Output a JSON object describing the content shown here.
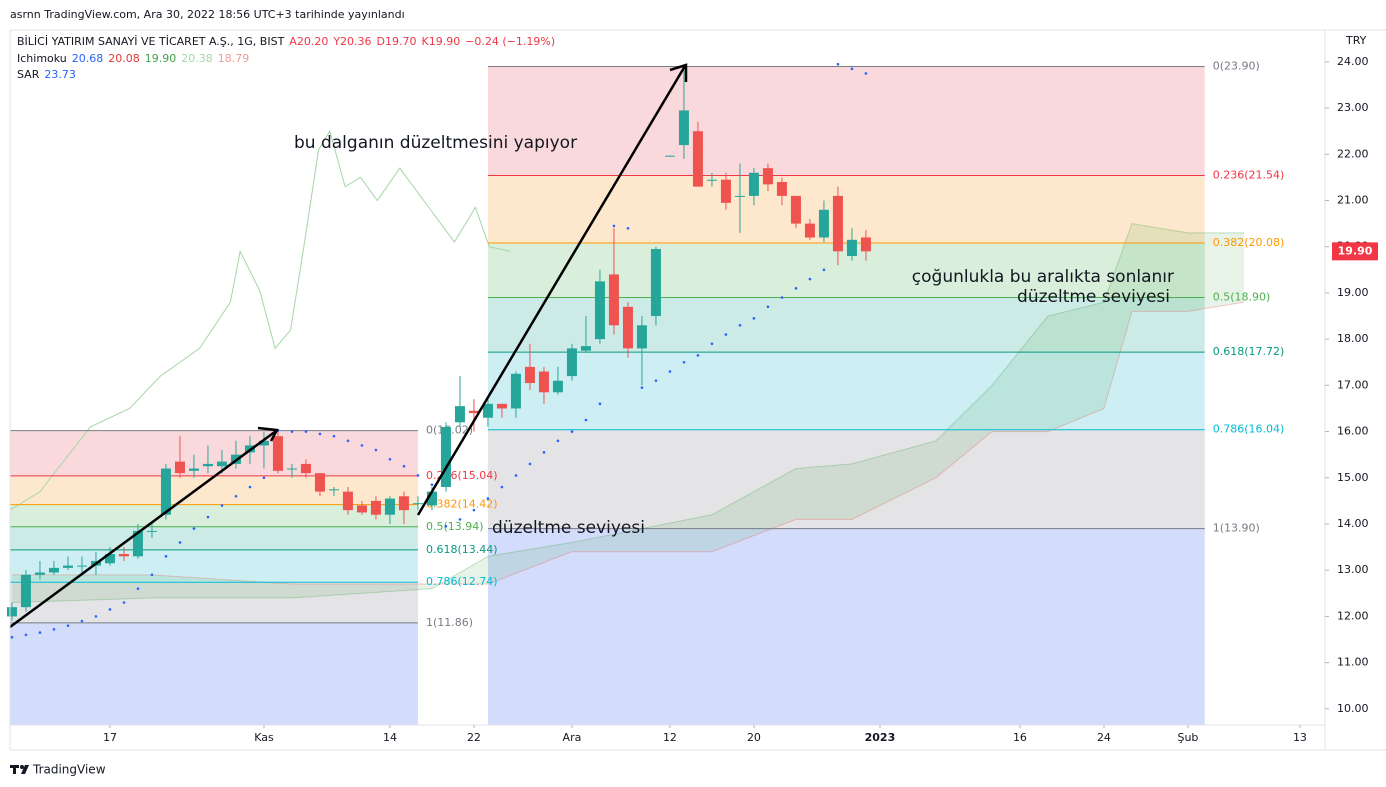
{
  "header": {
    "published": "asrnn TradingView.com, Ara 30, 2022 18:56 UTC+3 tarihinde yayınlandı"
  },
  "legend": {
    "symbol": "BİLİCİ YATIRIM SANAYİ VE TİCARET A.Ş., 1G, BIST",
    "ohlc": [
      {
        "text": "A20.20",
        "color": "#f23645"
      },
      {
        "text": "Y20.36",
        "color": "#f23645"
      },
      {
        "text": "D19.70",
        "color": "#f23645"
      },
      {
        "text": "K19.90",
        "color": "#f23645"
      },
      {
        "text": "−0.24 (−1.19%)",
        "color": "#f23645"
      }
    ],
    "indicators": [
      {
        "name": "Ichimoku",
        "values": [
          {
            "text": "20.68",
            "color": "#2962ff"
          },
          {
            "text": "20.08",
            "color": "#e53935"
          },
          {
            "text": "19.90",
            "color": "#43a047"
          },
          {
            "text": "20.38",
            "color": "#a5d6a7"
          },
          {
            "text": "18.79",
            "color": "#ef9a9a"
          }
        ]
      },
      {
        "name": "SAR",
        "values": [
          {
            "text": "23.73",
            "color": "#2962ff"
          }
        ]
      }
    ]
  },
  "footer": {
    "brand": "TradingView"
  },
  "chart_data": {
    "type": "candlestick",
    "currency": "TRY",
    "xlim": [
      -0.14,
      93.79
    ],
    "ylim": [
      9.65,
      24.69
    ],
    "xticks": [
      {
        "value": 7,
        "label": "17"
      },
      {
        "value": 18,
        "label": "Kas"
      },
      {
        "value": 27,
        "label": "14"
      },
      {
        "value": 33,
        "label": "22"
      },
      {
        "value": 40,
        "label": "Ara"
      },
      {
        "value": 47,
        "label": "12"
      },
      {
        "value": 53,
        "label": "20"
      },
      {
        "value": 62,
        "label": "2023"
      },
      {
        "value": 72,
        "label": "16"
      },
      {
        "value": 78,
        "label": "24"
      },
      {
        "value": 84,
        "label": "Şub"
      },
      {
        "value": 92,
        "label": "13"
      }
    ],
    "yticks": [
      {
        "value": 10,
        "label": "10.00"
      },
      {
        "value": 11,
        "label": "11.00"
      },
      {
        "value": 12,
        "label": "12.00"
      },
      {
        "value": 13,
        "label": "13.00"
      },
      {
        "value": 14,
        "label": "14.00"
      },
      {
        "value": 15,
        "label": "15.00"
      },
      {
        "value": 16,
        "label": "16.00"
      },
      {
        "value": 17,
        "label": "17.00"
      },
      {
        "value": 18,
        "label": "18.00"
      },
      {
        "value": 19,
        "label": "19.00"
      },
      {
        "value": 20,
        "label": "20.00"
      },
      {
        "value": 21,
        "label": "21.00"
      },
      {
        "value": 22,
        "label": "22.00"
      },
      {
        "value": 23,
        "label": "23.00"
      },
      {
        "value": 24,
        "label": "24.00"
      }
    ],
    "up_color": "#26a69a",
    "down_color": "#ef5350",
    "open": [
      12.0,
      12.2,
      12.9,
      12.95,
      13.05,
      13.1,
      13.1,
      13.15,
      13.35,
      13.3,
      13.85,
      14.2,
      15.35,
      15.15,
      15.25,
      15.25,
      15.3,
      15.55,
      15.7,
      15.9,
      15.2,
      15.3,
      15.1,
      14.75,
      14.7,
      14.4,
      14.5,
      14.2,
      14.6,
      14.45,
      14.4,
      14.8,
      16.2,
      16.45,
      16.3,
      16.6,
      16.5,
      17.4,
      17.3,
      16.85,
      17.2,
      17.75,
      18.0,
      19.4,
      18.7,
      17.8,
      18.5,
      21.95,
      22.2,
      22.5,
      21.45,
      21.45,
      21.1,
      21.1,
      21.7,
      21.4,
      21.1,
      20.5,
      20.2,
      21.1,
      19.8,
      20.2
    ],
    "high": [
      12.3,
      13.0,
      13.2,
      13.2,
      13.3,
      13.3,
      13.4,
      13.5,
      13.5,
      14.0,
      14.0,
      15.3,
      15.9,
      15.5,
      15.7,
      15.6,
      15.8,
      15.9,
      16.0,
      16.0,
      15.3,
      15.4,
      15.1,
      14.8,
      14.8,
      14.5,
      14.6,
      14.6,
      14.7,
      14.6,
      14.8,
      16.2,
      17.2,
      16.7,
      16.7,
      16.6,
      17.3,
      17.9,
      17.4,
      17.4,
      17.9,
      18.5,
      19.5,
      20.4,
      18.8,
      18.5,
      20.0,
      21.98,
      23.9,
      22.7,
      21.6,
      21.6,
      21.8,
      21.7,
      21.8,
      21.5,
      21.1,
      20.6,
      21.0,
      21.3,
      20.4,
      20.36
    ],
    "low": [
      11.9,
      12.1,
      12.8,
      12.9,
      13.0,
      12.95,
      12.9,
      13.1,
      13.2,
      13.25,
      13.7,
      14.1,
      15.0,
      15.0,
      15.1,
      15.1,
      15.2,
      15.3,
      15.2,
      15.1,
      15.0,
      15.0,
      14.6,
      14.6,
      14.2,
      14.2,
      14.1,
      14.0,
      14.0,
      14.3,
      14.3,
      14.7,
      16.1,
      16.0,
      16.1,
      16.3,
      16.3,
      16.9,
      16.6,
      16.8,
      17.1,
      17.7,
      17.9,
      18.1,
      17.6,
      17.0,
      18.3,
      21.95,
      21.9,
      21.3,
      21.3,
      20.8,
      20.3,
      20.9,
      21.2,
      20.9,
      20.4,
      20.15,
      20.1,
      19.6,
      19.7,
      19.7
    ],
    "close": [
      12.2,
      12.9,
      12.95,
      13.05,
      13.1,
      13.1,
      13.2,
      13.35,
      13.3,
      13.85,
      13.85,
      15.2,
      15.1,
      15.2,
      15.3,
      15.35,
      15.5,
      15.7,
      15.8,
      15.15,
      15.2,
      15.1,
      14.7,
      14.75,
      14.3,
      14.25,
      14.2,
      14.55,
      14.3,
      14.45,
      14.7,
      16.1,
      16.55,
      16.4,
      16.6,
      16.5,
      17.25,
      17.05,
      16.85,
      17.1,
      17.8,
      17.85,
      19.25,
      18.3,
      17.8,
      18.3,
      19.95,
      21.97,
      22.95,
      21.3,
      21.45,
      20.95,
      21.1,
      21.6,
      21.35,
      21.1,
      20.5,
      20.2,
      20.8,
      19.9,
      20.15,
      19.9
    ],
    "sar": {
      "color": "#2962ff",
      "values": [
        11.55,
        11.6,
        11.65,
        11.72,
        11.8,
        11.9,
        12.0,
        12.15,
        12.3,
        12.6,
        12.9,
        13.3,
        13.6,
        13.9,
        14.15,
        14.4,
        14.6,
        14.8,
        15.0,
        16.02,
        16.0,
        16.0,
        15.95,
        15.9,
        15.8,
        15.7,
        15.6,
        15.4,
        15.25,
        15.05,
        14.85,
        13.95,
        14.1,
        14.3,
        14.55,
        14.8,
        15.05,
        15.3,
        15.55,
        15.8,
        16.0,
        16.25,
        16.6,
        20.45,
        20.4,
        16.95,
        17.1,
        17.3,
        17.5,
        17.65,
        17.9,
        18.1,
        18.3,
        18.45,
        18.7,
        18.9,
        19.1,
        19.3,
        19.5,
        23.95,
        23.85,
        23.75
      ]
    },
    "cloud": {
      "color": "#43a047",
      "x": [
        0,
        10,
        20,
        30,
        34,
        40,
        50,
        56,
        60,
        66,
        70,
        74,
        78,
        80,
        84,
        88
      ],
      "span_a": [
        12.3,
        12.4,
        12.4,
        12.6,
        13.3,
        13.6,
        14.2,
        15.2,
        15.3,
        15.8,
        17.0,
        18.5,
        18.8,
        20.5,
        20.3,
        20.3
      ],
      "span_b": [
        12.9,
        12.9,
        12.7,
        12.7,
        12.7,
        13.4,
        13.4,
        14.1,
        14.1,
        15.0,
        16.0,
        16.0,
        16.5,
        18.6,
        18.6,
        18.8
      ]
    },
    "lagging": {
      "color": "#a5d6a7",
      "x": [
        -0.14,
        2,
        5.6,
        8.4,
        10.6,
        13.4,
        15.6,
        16.3,
        17.7,
        18.8,
        19.9,
        20.9,
        21.9,
        22.7,
        23.8,
        24.9,
        26.1,
        27.7,
        29.9,
        31.6,
        33.1,
        34.1,
        35.6
      ],
      "values": [
        14.3,
        14.7,
        16.1,
        16.5,
        17.2,
        17.8,
        18.8,
        19.9,
        19.05,
        17.8,
        18.2,
        20.1,
        22.1,
        22.5,
        21.3,
        21.5,
        21.0,
        21.7,
        20.8,
        20.1,
        20.85,
        20.0,
        19.9
      ]
    },
    "fibs": [
      {
        "x": [
          -0.14,
          29
        ],
        "extension_color": "#d3ddfb",
        "levels": [
          {
            "price": 16.02,
            "label": "0(16.02)",
            "color": "#787b86",
            "band": "#fad9dc"
          },
          {
            "price": 15.04,
            "label": "0.236(15.04)",
            "color": "#f23645",
            "band": "#fde8cd"
          },
          {
            "price": 14.42,
            "label": "0.382(14.42)",
            "color": "#ff9800",
            "band": "#d9eedb"
          },
          {
            "price": 13.94,
            "label": "0.5(13.94)",
            "color": "#4caf50",
            "band": "#cdebe6"
          },
          {
            "price": 13.44,
            "label": "0.618(13.44)",
            "color": "#089981",
            "band": "#cdeff3"
          },
          {
            "price": 12.74,
            "label": "0.786(12.74)",
            "color": "#00bcd4",
            "band": "#e4e4e6"
          },
          {
            "price": 11.86,
            "label": "1(11.86)",
            "color": "#787b86"
          }
        ]
      },
      {
        "x": [
          34,
          85.2
        ],
        "extension_color": "#d3ddfb",
        "levels": [
          {
            "price": 23.9,
            "label": "0(23.90)",
            "color": "#787b86",
            "band": "#fad9dc"
          },
          {
            "price": 21.54,
            "label": "0.236(21.54)",
            "color": "#f23645",
            "band": "#fde8cd"
          },
          {
            "price": 20.08,
            "label": "0.382(20.08)",
            "color": "#ff9800",
            "band": "#d9eedb"
          },
          {
            "price": 18.9,
            "label": "0.5(18.90)",
            "color": "#4caf50",
            "band": "#cdebe6"
          },
          {
            "price": 17.72,
            "label": "0.618(17.72)",
            "color": "#089981",
            "band": "#cdeff3"
          },
          {
            "price": 16.04,
            "label": "0.786(16.04)",
            "color": "#00bcd4",
            "band": "#e4e4e6"
          },
          {
            "price": 13.9,
            "label": "1(13.90)",
            "color": "#787b86"
          }
        ]
      }
    ],
    "last_price": {
      "value": 19.9,
      "label": "19.90",
      "color": "#f23645"
    },
    "annotations": [
      "bu dalganın düzeltmesini yapıyor",
      "düzeltme seviyesi",
      "çoğunlukla bu aralıkta sonlanır",
      "düzeltme seviyesi"
    ]
  }
}
